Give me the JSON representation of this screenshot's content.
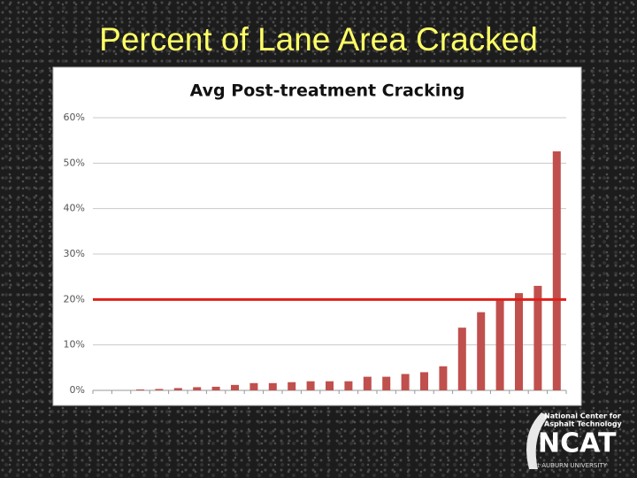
{
  "slide_title": "Percent of Lane Area Cracked",
  "chart_data": {
    "type": "bar",
    "title": "Avg Post-treatment Cracking",
    "categories": [
      null,
      null,
      null,
      null,
      null,
      null,
      null,
      null,
      null,
      null,
      null,
      null,
      null,
      null,
      null,
      null,
      null,
      null,
      null,
      null,
      null,
      null,
      null,
      null,
      null
    ],
    "values": [
      0,
      0,
      0.2,
      0.3,
      0.5,
      0.7,
      0.8,
      1.2,
      1.6,
      1.6,
      1.8,
      2,
      2,
      2,
      3,
      3,
      3.6,
      4,
      5.3,
      13.8,
      17.2,
      20,
      21.4,
      23,
      52.6
    ],
    "color": "#c0504d",
    "ylim": [
      0,
      60
    ],
    "yticks": [
      {
        "value": 0,
        "label": "0%"
      },
      {
        "value": 10,
        "label": "10%"
      },
      {
        "value": 20,
        "label": "20%"
      },
      {
        "value": 30,
        "label": "30%"
      },
      {
        "value": 40,
        "label": "40%"
      },
      {
        "value": 50,
        "label": "50%"
      },
      {
        "value": 60,
        "label": "60%"
      }
    ],
    "grid": true,
    "reference_line": {
      "value": 20,
      "color": "#e0201b"
    }
  },
  "logo": {
    "line1": "National Center for",
    "line2": "Asphalt Technology",
    "name": "NCAT",
    "sub": "at AUBURN UNIVERSITY"
  }
}
